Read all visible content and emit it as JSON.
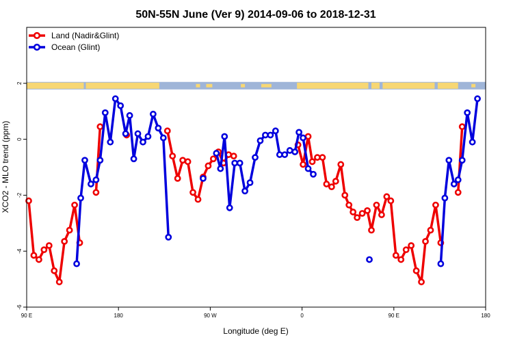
{
  "chart_data": {
    "type": "line",
    "title": "50N-55N June (Ver 9)   2014-09-06 to 2018-12-31",
    "xlabel": "Longitude (deg E)",
    "ylabel": "XCO2 - MLO trend (ppm)",
    "xlim": [
      90,
      540
    ],
    "ylim": [
      -6,
      4
    ],
    "x_ticks": [
      {
        "value": 90,
        "label": "90 E"
      },
      {
        "value": 180,
        "label": "180"
      },
      {
        "value": 270,
        "label": "90 W"
      },
      {
        "value": 360,
        "label": "0"
      },
      {
        "value": 450,
        "label": "90 E"
      },
      {
        "value": 540,
        "label": "180"
      }
    ],
    "y_ticks": [
      {
        "value": -6,
        "label": "-6"
      },
      {
        "value": -4,
        "label": "-4"
      },
      {
        "value": -2,
        "label": "-2"
      },
      {
        "value": 0,
        "label": "0"
      },
      {
        "value": 2,
        "label": "2"
      }
    ],
    "legend_position": "top-left",
    "land_ocean_strip": true,
    "colors": {
      "land": "#ee0000",
      "ocean": "#0000dd",
      "land_strip": "#f7d774",
      "ocean_strip": "#9fb5d8"
    },
    "series": [
      {
        "name": "Land (Nadir&Glint)",
        "color": "#ee0000",
        "segments": [
          [
            [
              92,
              -2.2
            ],
            [
              97,
              -4.15
            ],
            [
              102,
              -4.3
            ],
            [
              107,
              -3.95
            ],
            [
              112,
              -3.8
            ],
            [
              117,
              -4.7
            ],
            [
              122,
              -5.1
            ],
            [
              127,
              -3.65
            ],
            [
              132,
              -3.25
            ],
            [
              137,
              -2.35
            ],
            [
              142,
              -3.7
            ]
          ],
          [
            [
              158,
              -1.9
            ],
            [
              162,
              0.45
            ]
          ],
          [
            [
              188,
              0.15
            ]
          ],
          [
            [
              228,
              0.3
            ],
            [
              233,
              -0.6
            ],
            [
              238,
              -1.4
            ],
            [
              243,
              -0.75
            ],
            [
              248,
              -0.8
            ],
            [
              253,
              -1.9
            ],
            [
              258,
              -2.15
            ],
            [
              263,
              -1.35
            ],
            [
              268,
              -0.95
            ],
            [
              273,
              -0.7
            ],
            [
              278,
              -0.45
            ],
            [
              283,
              -0.85
            ],
            [
              288,
              -0.55
            ],
            [
              293,
              -0.6
            ]
          ],
          [
            [
              356,
              -0.2
            ],
            [
              361,
              -0.9
            ],
            [
              366,
              0.1
            ],
            [
              370,
              -0.8
            ],
            [
              375,
              -0.65
            ],
            [
              380,
              -0.65
            ],
            [
              384,
              -1.6
            ],
            [
              389,
              -1.7
            ],
            [
              393,
              -1.5
            ],
            [
              398,
              -0.9
            ],
            [
              402,
              -2.0
            ],
            [
              406,
              -2.35
            ],
            [
              410,
              -2.6
            ],
            [
              414,
              -2.8
            ],
            [
              419,
              -2.65
            ],
            [
              424,
              -2.55
            ],
            [
              428,
              -3.25
            ],
            [
              433,
              -2.35
            ],
            [
              438,
              -2.7
            ],
            [
              443,
              -2.05
            ],
            [
              447,
              -2.2
            ],
            [
              452,
              -4.15
            ],
            [
              457,
              -4.3
            ],
            [
              462,
              -3.95
            ],
            [
              467,
              -3.8
            ],
            [
              472,
              -4.7
            ],
            [
              477,
              -5.1
            ],
            [
              481,
              -3.65
            ],
            [
              486,
              -3.25
            ],
            [
              491,
              -2.35
            ],
            [
              496,
              -3.7
            ]
          ],
          [
            [
              513,
              -1.9
            ],
            [
              517,
              0.45
            ]
          ]
        ]
      },
      {
        "name": "Ocean (Glint)",
        "color": "#0000dd",
        "segments": [
          [
            [
              139,
              -4.45
            ],
            [
              143,
              -2.1
            ],
            [
              147,
              -0.75
            ],
            [
              153,
              -1.6
            ],
            [
              158,
              -1.45
            ],
            [
              162,
              -0.75
            ],
            [
              167,
              0.95
            ],
            [
              172,
              -0.1
            ],
            [
              177,
              1.45
            ],
            [
              182,
              1.2
            ],
            [
              187,
              0.2
            ],
            [
              191,
              0.85
            ],
            [
              195,
              -0.7
            ],
            [
              199,
              0.2
            ],
            [
              204,
              -0.1
            ],
            [
              209,
              0.1
            ],
            [
              214,
              0.9
            ],
            [
              219,
              0.4
            ],
            [
              224,
              0.05
            ],
            [
              229,
              -3.5
            ]
          ],
          [
            [
              263,
              -1.4
            ]
          ],
          [
            [
              276,
              -0.5
            ],
            [
              280,
              -1.05
            ],
            [
              284,
              0.1
            ],
            [
              289,
              -2.45
            ],
            [
              294,
              -0.85
            ],
            [
              299,
              -0.85
            ],
            [
              304,
              -1.85
            ],
            [
              309,
              -1.55
            ],
            [
              314,
              -0.65
            ],
            [
              319,
              -0.05
            ],
            [
              324,
              0.15
            ],
            [
              329,
              0.15
            ],
            [
              334,
              0.3
            ],
            [
              338,
              -0.55
            ],
            [
              343,
              -0.55
            ],
            [
              348,
              -0.4
            ],
            [
              353,
              -0.45
            ],
            [
              357,
              0.25
            ],
            [
              361,
              0.05
            ],
            [
              366,
              -1.05
            ],
            [
              371,
              -1.25
            ]
          ],
          [
            [
              426,
              -4.3
            ]
          ],
          [
            [
              496,
              -4.45
            ],
            [
              500,
              -2.1
            ],
            [
              504,
              -0.75
            ],
            [
              509,
              -1.6
            ],
            [
              513,
              -1.45
            ],
            [
              517,
              -0.75
            ],
            [
              522,
              0.95
            ],
            [
              527,
              -0.1
            ],
            [
              532,
              1.45
            ]
          ]
        ]
      }
    ]
  }
}
